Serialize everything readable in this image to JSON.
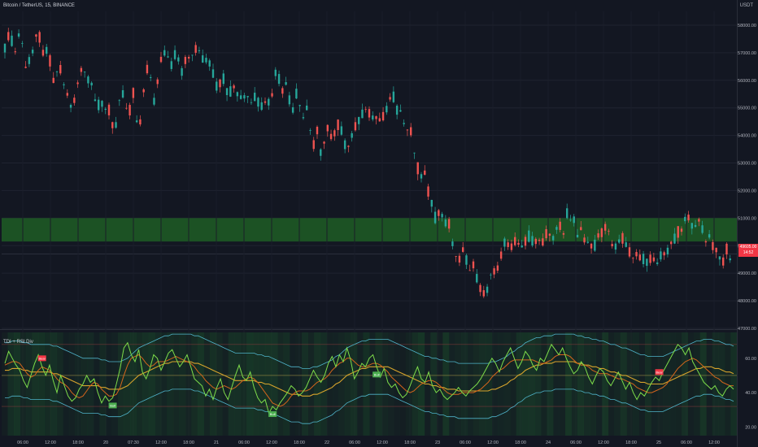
{
  "header": {
    "symbol_title": "Bitcoin / TetherUS, 15, BINANCE",
    "currency": "USDT",
    "indicator_title": "TDI + RSI Div",
    "last_price": "49605.00",
    "countdown": "14:52"
  },
  "colors": {
    "background": "#131722",
    "up_candle": "#26a69a",
    "down_candle": "#ef5350",
    "zone": "#1f5d24",
    "rsi_line": "#7ddc4a",
    "signal_line": "#d4651c",
    "market_base": "#d6a32c",
    "band": "#4fb3c9",
    "bear_label": "#f23645",
    "bull_label": "#4caf50"
  },
  "chart_data": [
    {
      "type": "candlestick",
      "title": "Bitcoin / TetherUS, 15, BINANCE",
      "ylim": [
        47000,
        58500
      ],
      "y_ticks": [
        "58000.00",
        "57000.00",
        "56000.00",
        "55000.00",
        "54000.00",
        "53000.00",
        "52000.00",
        "51000.00",
        "50000.00",
        "49000.00",
        "48000.00",
        "47000.00"
      ],
      "x_ticks": [
        "06:00",
        "12:00",
        "18:00",
        "20",
        "07:30",
        "12:00",
        "18:00",
        "21",
        "06:00",
        "12:00",
        "18:00",
        "22",
        "06:00",
        "12:00",
        "18:00",
        "23",
        "06:00",
        "12:00",
        "18:00",
        "24",
        "06:00",
        "12:00",
        "18:00",
        "25",
        "06:00",
        "12:00"
      ],
      "close_path": [
        57200,
        57600,
        57400,
        57000,
        57700,
        57300,
        56300,
        56800,
        57100,
        57800,
        57500,
        56800,
        57200,
        56500,
        55700,
        56700,
        56200,
        55600,
        55400,
        54800,
        55700,
        56100,
        56700,
        55900,
        56200,
        55400,
        55000,
        55300,
        54900,
        55100,
        54500,
        54100,
        55200,
        55600,
        55000,
        54800,
        55700,
        54500,
        54400,
        55600,
        56400,
        56100,
        55200,
        56000,
        56800,
        57000,
        56800,
        56500,
        57000,
        56700,
        56200,
        56900,
        56800,
        57000,
        57200,
        57000,
        56600,
        56800,
        56500,
        56000,
        55600,
        56200,
        55900,
        55300,
        55900,
        55600,
        55400,
        55300,
        55600,
        55100,
        55400,
        55300,
        55000,
        55200,
        55200,
        55300,
        56300,
        56100,
        55600,
        55900,
        55300,
        54900,
        55500,
        55100,
        54600,
        55000,
        54100,
        53600,
        54300,
        53200,
        53900,
        54400,
        53800,
        54200,
        54500,
        54000,
        53500,
        53700,
        54200,
        54400,
        54700,
        54800,
        55100,
        54500,
        54800,
        54500,
        54600,
        54800,
        55200,
        55600,
        54900,
        55000,
        54500,
        54200,
        54300,
        53500,
        52900,
        52500,
        52700,
        52000,
        51600,
        51000,
        51200,
        51100,
        50800,
        50800,
        50000,
        49600,
        49500,
        49900,
        49400,
        49000,
        49400,
        48600,
        48400,
        48200,
        48500,
        49200,
        49000,
        49300,
        49900,
        50300,
        49800,
        50100,
        50200,
        49900,
        50000,
        50400,
        50200,
        50100,
        50300,
        50000,
        50400,
        50500,
        50200,
        50600,
        50800,
        50300,
        51200,
        50900,
        51000,
        50300,
        50600,
        50200,
        50100,
        50000,
        50000,
        50400,
        50500,
        50700,
        50500,
        49900,
        50000,
        50200,
        50300,
        49900,
        49700,
        49500,
        49800,
        49400,
        49600,
        49300,
        49700,
        49300,
        49400,
        49900,
        49500,
        50200,
        50000,
        50600,
        50400,
        50900,
        51100,
        50800,
        50600,
        51000,
        50700,
        50100,
        50400,
        50000,
        49900,
        49600,
        49400,
        49900,
        49500
      ]
    },
    {
      "type": "line",
      "title": "TDI + RSI Div",
      "ylim": [
        15,
        75
      ],
      "y_ticks": [
        "60.00",
        "40.00",
        "20.00"
      ],
      "series": [
        {
          "key": "rsi",
          "values": [
            57,
            64,
            60,
            56,
            53,
            47,
            43,
            50,
            57,
            62,
            55,
            50,
            56,
            47,
            40,
            50,
            44,
            38,
            35,
            37,
            42,
            45,
            50,
            46,
            48,
            40,
            34,
            38,
            35,
            37,
            45,
            54,
            66,
            69,
            62,
            58,
            65,
            52,
            48,
            54,
            62,
            60,
            53,
            58,
            63,
            65,
            60,
            55,
            58,
            62,
            55,
            48,
            46,
            44,
            38,
            42,
            36,
            43,
            48,
            40,
            36,
            43,
            50,
            56,
            49,
            47,
            52,
            43,
            37,
            34,
            36,
            28,
            32,
            30,
            34,
            37,
            40,
            44,
            42,
            38,
            40,
            43,
            48,
            53,
            49,
            46,
            50,
            57,
            61,
            55,
            62,
            58,
            66,
            59,
            48,
            52,
            57,
            55,
            60,
            62,
            55,
            49,
            54,
            46,
            43,
            45,
            40,
            37,
            39,
            44,
            50,
            55,
            48,
            46,
            52,
            44,
            40,
            42,
            38,
            36,
            38,
            40,
            43,
            40,
            38,
            41,
            43,
            45,
            48,
            52,
            56,
            60,
            57,
            52,
            58,
            62,
            66,
            60,
            54,
            58,
            64,
            61,
            56,
            53,
            60,
            58,
            63,
            68,
            65,
            62,
            66,
            60,
            55,
            51,
            53,
            58,
            55,
            49,
            45,
            50,
            54,
            52,
            47,
            44,
            48,
            52,
            47,
            42,
            46,
            40,
            36,
            40,
            38,
            42,
            46,
            49,
            47,
            52,
            56,
            60,
            64,
            68,
            66,
            62,
            66,
            58,
            54,
            50,
            46,
            44,
            42,
            44,
            40,
            38,
            42,
            44,
            42
          ]
        },
        {
          "key": "signal",
          "values": [
            56,
            57,
            58,
            58,
            57,
            54,
            51,
            49,
            50,
            53,
            55,
            54,
            53,
            51,
            48,
            46,
            45,
            43,
            40,
            38,
            37,
            38,
            41,
            44,
            46,
            45,
            42,
            40,
            38,
            38,
            39,
            43,
            50,
            56,
            60,
            61,
            62,
            60,
            57,
            55,
            56,
            58,
            58,
            58,
            59,
            60,
            61,
            60,
            59,
            58,
            57,
            55,
            52,
            50,
            47,
            45,
            43,
            42,
            43,
            44,
            43,
            42,
            43,
            45,
            47,
            48,
            49,
            48,
            46,
            43,
            40,
            37,
            34,
            33,
            32,
            33,
            35,
            38,
            40,
            41,
            41,
            41,
            42,
            44,
            46,
            47,
            48,
            50,
            53,
            55,
            57,
            58,
            60,
            60,
            58,
            56,
            55,
            55,
            56,
            57,
            57,
            56,
            54,
            52,
            49,
            47,
            45,
            43,
            41,
            40,
            41,
            43,
            45,
            46,
            47,
            47,
            46,
            44,
            42,
            40,
            39,
            39,
            39,
            40,
            40,
            40,
            40,
            41,
            42,
            44,
            46,
            49,
            51,
            53,
            54,
            56,
            58,
            59,
            59,
            59,
            59,
            59,
            59,
            58,
            57,
            57,
            58,
            59,
            61,
            62,
            62,
            62,
            61,
            59,
            57,
            56,
            56,
            55,
            53,
            52,
            51,
            51,
            51,
            50,
            49,
            48,
            48,
            47,
            46,
            45,
            43,
            42,
            41,
            40,
            40,
            41,
            42,
            43,
            45,
            48,
            51,
            54,
            56,
            58,
            59,
            60,
            59,
            57,
            55,
            53,
            51,
            49,
            48,
            46,
            45,
            44,
            44
          ]
        },
        {
          "key": "base",
          "values": [
            53,
            53,
            54,
            54,
            54,
            53,
            53,
            52,
            52,
            52,
            52,
            52,
            52,
            51,
            51,
            50,
            49,
            48,
            47,
            46,
            45,
            44,
            44,
            44,
            44,
            44,
            43,
            43,
            42,
            42,
            42,
            42,
            43,
            44,
            46,
            48,
            50,
            51,
            52,
            53,
            54,
            55,
            56,
            57,
            57,
            58,
            58,
            58,
            58,
            58,
            58,
            57,
            57,
            56,
            55,
            54,
            53,
            52,
            51,
            50,
            49,
            48,
            47,
            47,
            47,
            47,
            47,
            47,
            46,
            46,
            45,
            45,
            44,
            43,
            42,
            41,
            40,
            39,
            39,
            39,
            38,
            38,
            38,
            39,
            39,
            40,
            41,
            42,
            43,
            45,
            46,
            48,
            50,
            51,
            52,
            53,
            54,
            54,
            55,
            55,
            55,
            55,
            55,
            55,
            54,
            53,
            52,
            51,
            50,
            49,
            48,
            47,
            46,
            45,
            45,
            44,
            44,
            43,
            43,
            42,
            42,
            42,
            41,
            41,
            41,
            41,
            41,
            41,
            41,
            41,
            41,
            42,
            42,
            43,
            44,
            45,
            47,
            48,
            50,
            51,
            53,
            54,
            55,
            56,
            56,
            57,
            57,
            57,
            58,
            58,
            58,
            58,
            58,
            58,
            57,
            57,
            56,
            56,
            55,
            55,
            54,
            54,
            53,
            52,
            52,
            51,
            50,
            50,
            49,
            48,
            47,
            46,
            46,
            45,
            45,
            45,
            45,
            45,
            46,
            47,
            48,
            49,
            50,
            51,
            52,
            53,
            54,
            54,
            55,
            55,
            55,
            54,
            54,
            53,
            52,
            52,
            51
          ]
        }
      ],
      "markers": {
        "bear": [
          "Bear",
          "Bear"
        ],
        "bull": [
          "Bull",
          "Bull",
          "Bull"
        ]
      }
    }
  ]
}
